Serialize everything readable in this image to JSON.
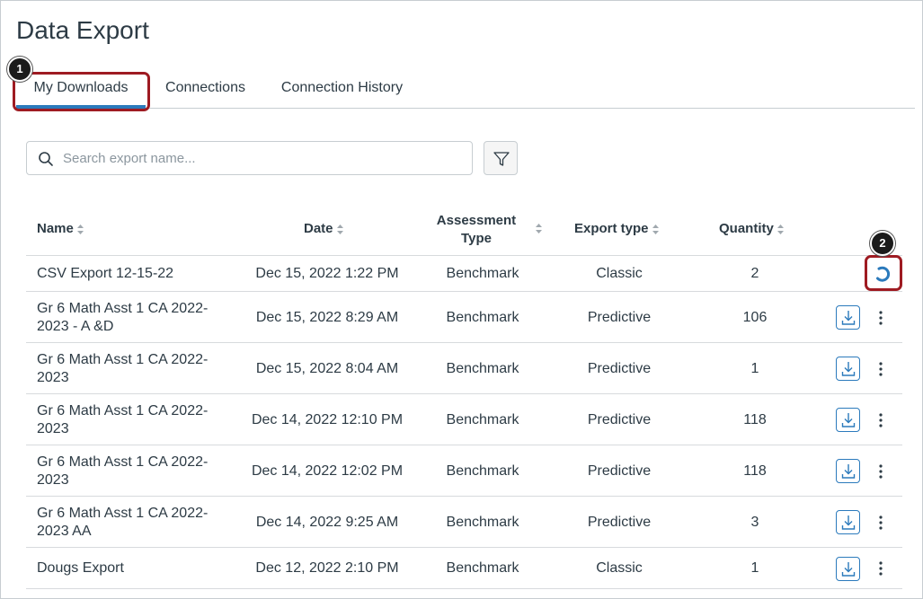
{
  "page": {
    "title": "Data Export"
  },
  "tabs": [
    {
      "label": "My Downloads",
      "active": true
    },
    {
      "label": "Connections",
      "active": false
    },
    {
      "label": "Connection History",
      "active": false
    }
  ],
  "callouts": [
    "1",
    "2"
  ],
  "search": {
    "placeholder": "Search export name...",
    "value": ""
  },
  "filter": {
    "icon": "filter-icon"
  },
  "table": {
    "columns": {
      "name": "Name",
      "date": "Date",
      "assessment_type": "Assessment Type",
      "export_type": "Export type",
      "quantity": "Quantity"
    },
    "rows": [
      {
        "name": "CSV Export 12-15-22",
        "date": "Dec 15, 2022 1:22 PM",
        "assessment_type": "Benchmark",
        "export_type": "Classic",
        "quantity": "2",
        "status": "processing"
      },
      {
        "name": "Gr 6 Math Asst 1 CA 2022-2023 - A &D",
        "date": "Dec 15, 2022 8:29 AM",
        "assessment_type": "Benchmark",
        "export_type": "Predictive",
        "quantity": "106",
        "status": "ready"
      },
      {
        "name": "Gr 6 Math Asst 1 CA 2022-2023",
        "date": "Dec 15, 2022 8:04 AM",
        "assessment_type": "Benchmark",
        "export_type": "Predictive",
        "quantity": "1",
        "status": "ready"
      },
      {
        "name": "Gr 6 Math Asst 1 CA 2022-2023",
        "date": "Dec 14, 2022 12:10 PM",
        "assessment_type": "Benchmark",
        "export_type": "Predictive",
        "quantity": "118",
        "status": "ready"
      },
      {
        "name": "Gr 6 Math Asst 1 CA 2022-2023",
        "date": "Dec 14, 2022 12:02 PM",
        "assessment_type": "Benchmark",
        "export_type": "Predictive",
        "quantity": "118",
        "status": "ready"
      },
      {
        "name": "Gr 6 Math Asst 1 CA 2022-2023 AA",
        "date": "Dec 14, 2022 9:25 AM",
        "assessment_type": "Benchmark",
        "export_type": "Predictive",
        "quantity": "3",
        "status": "ready"
      },
      {
        "name": "Dougs Export",
        "date": "Dec 12, 2022 2:10 PM",
        "assessment_type": "Benchmark",
        "export_type": "Classic",
        "quantity": "1",
        "status": "ready"
      }
    ]
  },
  "colors": {
    "accent": "#2b7abc",
    "callout": "#9e1b22",
    "text": "#2d3b45"
  }
}
